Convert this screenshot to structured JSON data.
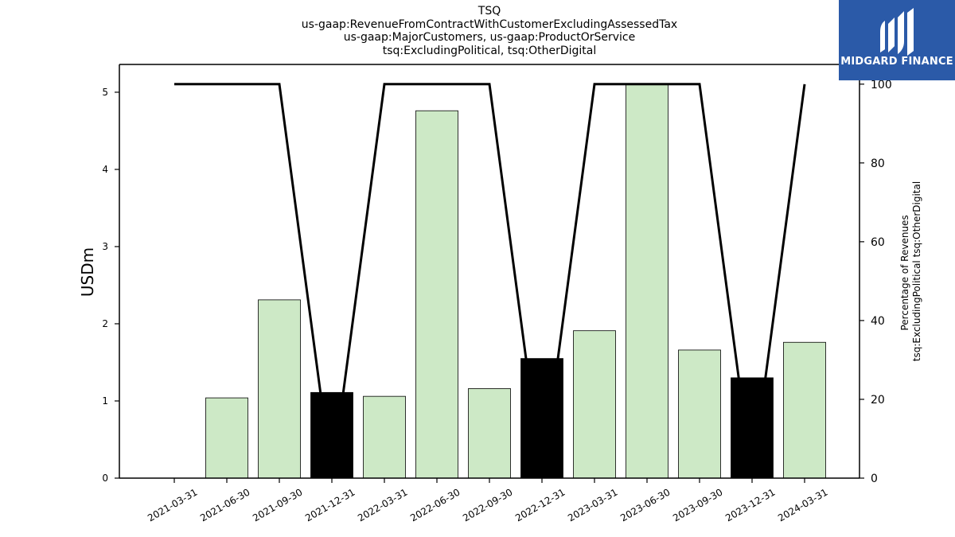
{
  "chart_data": {
    "type": "bar",
    "title_lines": [
      "TSQ",
      "us-gaap:RevenueFromContractWithCustomerExcludingAssessedTax",
      "us-gaap:MajorCustomers, us-gaap:ProductOrService",
      "tsq:ExcludingPolitical, tsq:OtherDigital"
    ],
    "ylabel": "USDm",
    "y2label_lines": [
      "Percentage of Revenues",
      "tsq:ExcludingPolitical tsq:OtherDigital"
    ],
    "categories": [
      "2021-03-31",
      "2021-06-30",
      "2021-09-30",
      "2021-12-31",
      "2022-03-31",
      "2022-06-30",
      "2022-09-30",
      "2022-12-31",
      "2023-03-31",
      "2023-06-30",
      "2023-09-30",
      "2023-12-31",
      "2024-03-31"
    ],
    "values": [
      0,
      1.04,
      2.31,
      1.11,
      1.06,
      4.76,
      1.16,
      1.55,
      1.91,
      5.11,
      1.66,
      1.3,
      1.76
    ],
    "bar_colors": [
      "#cde9c6",
      "#cde9c6",
      "#cde9c6",
      "#000000",
      "#cde9c6",
      "#cde9c6",
      "#cde9c6",
      "#000000",
      "#cde9c6",
      "#cde9c6",
      "#cde9c6",
      "#000000",
      "#cde9c6"
    ],
    "ylim": [
      0,
      5.36
    ],
    "yticks": [
      0,
      1,
      2,
      3,
      4,
      5
    ],
    "line_series": {
      "axis": "right",
      "values": [
        100,
        100,
        100,
        0,
        100,
        100,
        100,
        0,
        100,
        100,
        100,
        0,
        100
      ]
    },
    "y2lim": [
      0,
      105
    ],
    "y2ticks": [
      0,
      20,
      40,
      60,
      80,
      100
    ],
    "legend": "none",
    "grid": false
  },
  "logo": {
    "text": "MIDGARD FINANCE",
    "background": "#2b5aa8"
  }
}
